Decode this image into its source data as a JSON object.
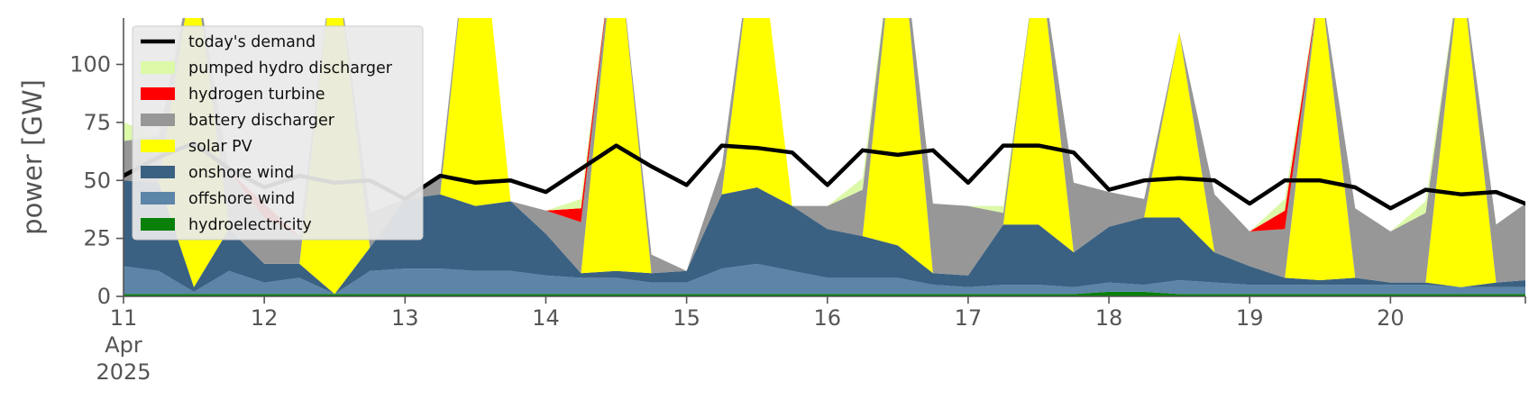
{
  "chart_data": {
    "type": "area",
    "xlabel": "",
    "ylabel": "power [GW]",
    "ylim": [
      0,
      120
    ],
    "yticks": [
      0,
      25,
      50,
      75,
      100
    ],
    "xlim": [
      "2025-04-11 00:00",
      "2025-04-20 23:00"
    ],
    "xticks": [
      {
        "date": "2025-04-11",
        "label": "11",
        "sublabel": "Apr",
        "year": "2025"
      },
      {
        "date": "2025-04-12",
        "label": "12"
      },
      {
        "date": "2025-04-13",
        "label": "13"
      },
      {
        "date": "2025-04-14",
        "label": "14"
      },
      {
        "date": "2025-04-15",
        "label": "15"
      },
      {
        "date": "2025-04-16",
        "label": "16"
      },
      {
        "date": "2025-04-17",
        "label": "17"
      },
      {
        "date": "2025-04-18",
        "label": "18"
      },
      {
        "date": "2025-04-19",
        "label": "19"
      },
      {
        "date": "2025-04-20",
        "label": "20"
      }
    ],
    "grid": false,
    "legend_position": "top-left",
    "stack_order_bottom_to_top": [
      "hydroelectricity",
      "offshore wind",
      "onshore wind",
      "solar PV",
      "battery discharger",
      "hydrogen turbine",
      "pumped hydro discharger"
    ],
    "x": [
      "2025-04-11 00:00",
      "2025-04-11 06:00",
      "2025-04-11 12:00",
      "2025-04-11 18:00",
      "2025-04-12 00:00",
      "2025-04-12 06:00",
      "2025-04-12 12:00",
      "2025-04-12 18:00",
      "2025-04-13 00:00",
      "2025-04-13 06:00",
      "2025-04-13 12:00",
      "2025-04-13 18:00",
      "2025-04-14 00:00",
      "2025-04-14 06:00",
      "2025-04-14 12:00",
      "2025-04-14 18:00",
      "2025-04-15 00:00",
      "2025-04-15 06:00",
      "2025-04-15 12:00",
      "2025-04-15 18:00",
      "2025-04-16 00:00",
      "2025-04-16 06:00",
      "2025-04-16 12:00",
      "2025-04-16 18:00",
      "2025-04-17 00:00",
      "2025-04-17 06:00",
      "2025-04-17 12:00",
      "2025-04-17 18:00",
      "2025-04-18 00:00",
      "2025-04-18 06:00",
      "2025-04-18 12:00",
      "2025-04-18 18:00",
      "2025-04-19 00:00",
      "2025-04-19 06:00",
      "2025-04-19 12:00",
      "2025-04-19 18:00",
      "2025-04-20 00:00",
      "2025-04-20 06:00",
      "2025-04-20 12:00",
      "2025-04-20 18:00",
      "2025-04-20 23:00"
    ],
    "series": [
      {
        "name": "hydroelectricity",
        "color": "#08800a",
        "values": [
          1,
          1,
          1,
          1,
          1,
          1,
          1,
          1,
          1,
          1,
          1,
          1,
          1,
          1,
          1,
          1,
          1,
          1,
          1,
          1,
          1,
          1,
          1,
          1,
          1,
          1,
          1,
          1,
          2,
          2,
          1,
          1,
          1,
          1,
          1,
          1,
          1,
          1,
          1,
          1,
          1
        ]
      },
      {
        "name": "offshore wind",
        "color": "#5c85a8",
        "values": [
          12,
          10,
          1,
          10,
          5,
          7,
          0,
          10,
          11,
          11,
          10,
          10,
          8,
          7,
          7,
          5,
          5,
          11,
          13,
          10,
          7,
          7,
          7,
          4,
          3,
          4,
          4,
          3,
          4,
          3,
          6,
          5,
          4,
          4,
          4,
          4,
          4,
          4,
          3,
          3,
          3
        ]
      },
      {
        "name": "onshore wind",
        "color": "#3b6182",
        "values": [
          37,
          38,
          2,
          18,
          8,
          6,
          0,
          10,
          30,
          32,
          28,
          30,
          18,
          2,
          3,
          4,
          5,
          32,
          33,
          28,
          21,
          18,
          14,
          5,
          5,
          26,
          26,
          15,
          24,
          29,
          27,
          13,
          8,
          3,
          2,
          3,
          1,
          1,
          0,
          2,
          3
        ]
      },
      {
        "name": "solar PV",
        "color": "#ffff00",
        "values": [
          0,
          0,
          140,
          0,
          0,
          0,
          150,
          0,
          0,
          0,
          150,
          0,
          0,
          0,
          150,
          0,
          0,
          0,
          120,
          0,
          0,
          0,
          150,
          0,
          0,
          0,
          120,
          0,
          0,
          0,
          80,
          0,
          0,
          0,
          130,
          0,
          0,
          0,
          140,
          0,
          0
        ]
      },
      {
        "name": "battery discharger",
        "color": "#979797",
        "values": [
          17,
          20,
          0,
          25,
          20,
          12,
          0,
          15,
          0,
          7,
          0,
          0,
          10,
          22,
          0,
          8,
          0,
          12,
          0,
          0,
          10,
          20,
          0,
          30,
          30,
          5,
          0,
          30,
          15,
          8,
          0,
          25,
          15,
          21,
          0,
          30,
          22,
          30,
          0,
          25,
          33
        ]
      },
      {
        "name": "hydrogen turbine",
        "color": "#ff0000",
        "values": [
          0,
          0,
          0,
          0,
          6,
          0,
          0,
          0,
          0,
          0,
          0,
          0,
          0,
          6,
          0,
          0,
          0,
          0,
          0,
          0,
          0,
          0,
          0,
          0,
          0,
          0,
          0,
          0,
          0,
          0,
          0,
          0,
          0,
          8,
          0,
          0,
          0,
          0,
          0,
          0,
          0
        ]
      },
      {
        "name": "pumped hydro discharger",
        "color": "#dcf9a8",
        "values": [
          8,
          0,
          0,
          0,
          0,
          0,
          0,
          0,
          0,
          0,
          0,
          0,
          0,
          4,
          0,
          0,
          0,
          0,
          0,
          0,
          0,
          5,
          0,
          0,
          0,
          3,
          0,
          0,
          0,
          0,
          0,
          0,
          0,
          5,
          0,
          0,
          0,
          5,
          0,
          0,
          0
        ]
      }
    ],
    "line": {
      "name": "today's demand",
      "color": "#000000",
      "values": [
        52,
        60,
        66,
        55,
        47,
        52,
        49,
        50,
        42,
        52,
        49,
        50,
        45,
        55,
        65,
        56,
        48,
        65,
        64,
        62,
        48,
        63,
        61,
        63,
        49,
        65,
        65,
        62,
        46,
        50,
        51,
        50,
        40,
        50,
        50,
        47,
        38,
        46,
        44,
        45,
        40
      ]
    }
  }
}
